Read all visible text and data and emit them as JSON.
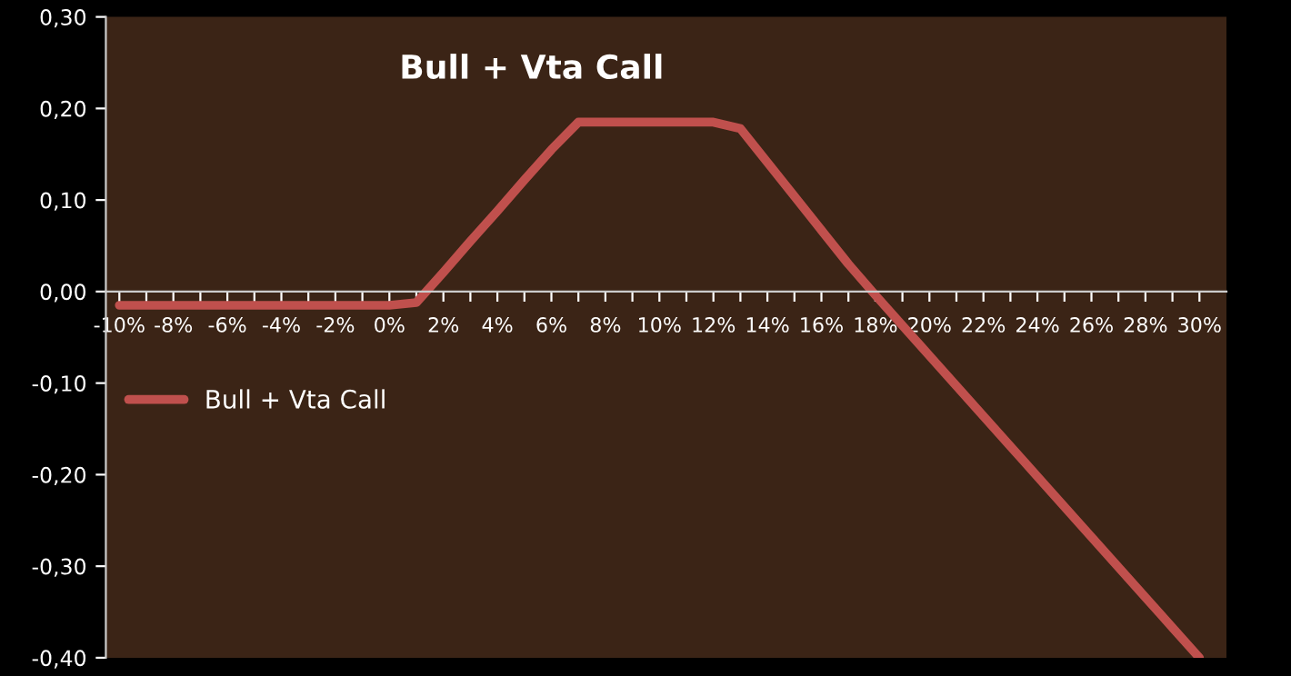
{
  "chart_data": {
    "type": "line",
    "title": "Bull + Vta Call",
    "categories": [
      "-10%",
      null,
      "-8%",
      null,
      "-6%",
      null,
      "-4%",
      null,
      "-2%",
      null,
      "0%",
      null,
      "2%",
      null,
      "4%",
      null,
      "6%",
      null,
      "8%",
      null,
      "10%",
      null,
      "12%",
      null,
      "14%",
      null,
      "16%",
      null,
      "18%",
      null,
      "20%",
      null,
      "22%",
      null,
      "24%",
      null,
      "26%",
      null,
      "28%",
      null,
      "30%"
    ],
    "series": [
      {
        "name": "Bull + Vta Call",
        "color": "#c0504d",
        "values": [
          -0.015,
          -0.015,
          -0.015,
          -0.015,
          -0.015,
          -0.015,
          -0.015,
          -0.015,
          -0.015,
          -0.015,
          -0.015,
          -0.012,
          0.021,
          0.055,
          0.088,
          0.122,
          0.155,
          0.185,
          0.185,
          0.185,
          0.185,
          0.185,
          0.185,
          0.178,
          0.141,
          0.104,
          0.067,
          0.03,
          -0.004,
          -0.037,
          -0.07,
          -0.103,
          -0.136,
          -0.169,
          -0.202,
          -0.235,
          -0.268,
          -0.301,
          -0.334,
          -0.367,
          -0.4
        ]
      }
    ],
    "ylim": [
      -0.4,
      0.3
    ],
    "yticks": [
      {
        "value": -0.4,
        "label": "-0,40"
      },
      {
        "value": -0.3,
        "label": "-0,30"
      },
      {
        "value": -0.2,
        "label": "-0,20"
      },
      {
        "value": -0.1,
        "label": "-0,10"
      },
      {
        "value": 0,
        "label": "0,00"
      },
      {
        "value": 0.1,
        "label": "0,10"
      },
      {
        "value": 0.2,
        "label": "0,20"
      },
      {
        "value": 0.3,
        "label": "0,30"
      }
    ],
    "grid": false,
    "legend": "left",
    "marker": "none",
    "line_style": "solid"
  }
}
